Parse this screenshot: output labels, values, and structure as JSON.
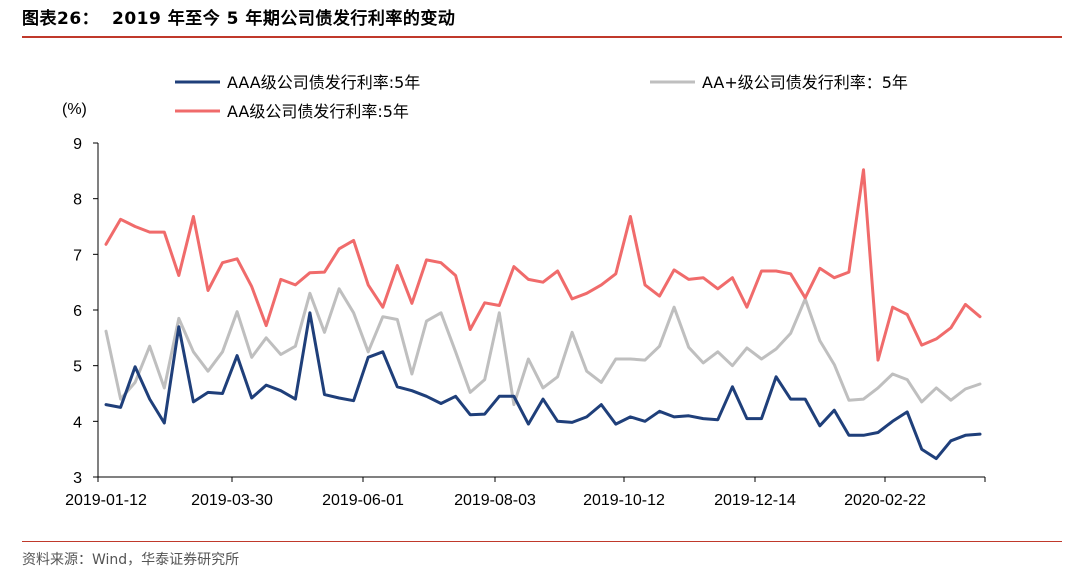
{
  "header": {
    "title": "图表26：  2019 年至今 5 年期公司债发行利率的变动"
  },
  "footer": {
    "source": "资料来源：Wind，华泰证券研究所"
  },
  "colors": {
    "accent_rule": "#c0392b"
  },
  "chart_data": {
    "type": "line",
    "ylabel": "(%)",
    "ylim": [
      3,
      9
    ],
    "yticks": [
      3,
      4,
      5,
      6,
      7,
      8,
      9
    ],
    "xtick_labels": [
      "2019-01-12",
      "2019-03-30",
      "2019-06-01",
      "2019-08-03",
      "2019-10-12",
      "2019-12-14",
      "2020-02-22"
    ],
    "legend_placement": "top",
    "series": [
      {
        "name": "AAA级公司债发行利率:5年",
        "color": "#1f3f7a",
        "values": [
          4.3,
          4.25,
          4.98,
          4.4,
          3.97,
          5.7,
          4.35,
          4.52,
          4.5,
          5.18,
          4.42,
          4.65,
          4.55,
          4.4,
          5.95,
          4.48,
          4.42,
          4.37,
          5.15,
          5.25,
          4.62,
          4.55,
          4.45,
          4.32,
          4.45,
          4.12,
          4.13,
          4.45,
          4.45,
          3.95,
          4.4,
          4.0,
          3.98,
          4.08,
          4.3,
          3.95,
          4.08,
          4.0,
          4.18,
          4.08,
          4.1,
          4.05,
          4.03,
          4.62,
          4.05,
          4.05,
          4.8,
          4.4,
          4.4,
          3.92,
          4.2,
          3.75,
          3.75,
          3.8,
          4.0,
          4.17,
          3.5,
          3.33,
          3.65,
          3.75,
          3.77
        ]
      },
      {
        "name": "AA+级公司债发行利率：5年",
        "color": "#bfbfbf",
        "values": [
          5.62,
          4.4,
          4.7,
          5.35,
          4.6,
          5.85,
          5.25,
          4.9,
          5.25,
          5.97,
          5.15,
          5.5,
          5.2,
          5.35,
          6.3,
          5.6,
          6.38,
          5.95,
          5.25,
          5.88,
          5.83,
          4.85,
          5.8,
          5.95,
          5.25,
          4.52,
          4.75,
          5.95,
          4.3,
          5.12,
          4.6,
          4.8,
          5.6,
          4.9,
          4.7,
          5.12,
          5.12,
          5.1,
          5.35,
          6.05,
          5.33,
          5.05,
          5.25,
          5.0,
          5.32,
          5.12,
          5.3,
          5.58,
          6.2,
          5.45,
          5.02,
          4.38,
          4.4,
          4.6,
          4.85,
          4.75,
          4.35,
          4.6,
          4.38,
          4.58,
          4.67
        ]
      },
      {
        "name": "AA级公司债发行利率:5年",
        "color": "#f06b6b",
        "values": [
          7.18,
          7.63,
          7.5,
          7.4,
          7.4,
          6.62,
          7.68,
          6.35,
          6.85,
          6.92,
          6.42,
          5.72,
          6.55,
          6.45,
          6.67,
          6.68,
          7.1,
          7.25,
          6.45,
          6.05,
          6.8,
          6.12,
          6.9,
          6.85,
          6.62,
          5.65,
          6.13,
          6.08,
          6.78,
          6.55,
          6.5,
          6.7,
          6.2,
          6.3,
          6.45,
          6.65,
          7.68,
          6.45,
          6.25,
          6.72,
          6.55,
          6.58,
          6.38,
          6.58,
          6.05,
          6.7,
          6.7,
          6.65,
          6.22,
          6.75,
          6.58,
          6.68,
          8.52,
          5.1,
          6.05,
          5.92,
          5.37,
          5.48,
          5.68,
          6.1,
          5.88
        ]
      }
    ]
  }
}
